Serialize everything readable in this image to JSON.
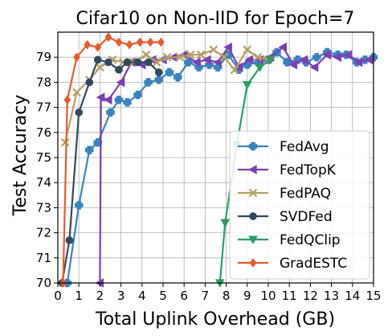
{
  "chart_data": {
    "type": "line",
    "title": "Cifar10 on Non-IID for Epoch=7",
    "xlabel": "Total Uplink Overhead (GB)",
    "ylabel": "Test Accuracy",
    "xlim": [
      0,
      15
    ],
    "ylim": [
      70,
      80
    ],
    "xticks": [
      0,
      1,
      2,
      3,
      4,
      5,
      6,
      7,
      8,
      9,
      10,
      11,
      12,
      13,
      14,
      15
    ],
    "yticks": [
      70,
      71,
      72,
      73,
      74,
      75,
      76,
      77,
      78,
      79
    ],
    "grid": true,
    "legend": "lower-right",
    "series": [
      {
        "name": "FedAvg",
        "color": "#3a83c0",
        "marker": "plus",
        "x": [
          0.45,
          1.0,
          1.5,
          1.9,
          2.5,
          2.9,
          3.3,
          3.8,
          4.3,
          4.8,
          5.3,
          5.7,
          6.2,
          6.7,
          7.2,
          7.6,
          8.1,
          8.6,
          9.0,
          9.5,
          10.0,
          10.4,
          10.9,
          11.4,
          11.8,
          12.3,
          12.8,
          13.3,
          13.7,
          14.2,
          14.6,
          15.0
        ],
        "y": [
          70.0,
          73.1,
          75.3,
          75.6,
          76.8,
          77.3,
          77.2,
          77.5,
          78.0,
          78.1,
          78.4,
          78.2,
          78.8,
          78.6,
          78.7,
          78.6,
          79.1,
          78.5,
          78.7,
          78.8,
          78.9,
          79.2,
          78.8,
          78.9,
          78.8,
          79.0,
          79.2,
          79.1,
          79.1,
          78.8,
          78.9,
          79.0
        ]
      },
      {
        "name": "FedTopK",
        "color": "#7b3fb3",
        "marker": "triangle-left",
        "x": [
          2.0,
          2.05,
          2.4,
          3.0,
          3.5,
          4.0,
          4.5,
          5.0,
          5.5,
          6.0,
          6.6,
          7.1,
          7.6,
          8.1,
          8.6,
          9.1,
          9.6,
          10.1,
          10.7,
          11.2,
          11.7,
          12.2,
          12.8,
          13.3,
          13.8,
          14.3,
          14.8
        ],
        "y": [
          70.0,
          77.4,
          77.3,
          78.0,
          78.8,
          78.7,
          78.9,
          78.9,
          79.0,
          79.1,
          78.8,
          78.9,
          78.8,
          79.4,
          78.6,
          78.9,
          78.9,
          79.0,
          79.4,
          78.7,
          78.9,
          78.6,
          79.1,
          79.0,
          79.1,
          78.8,
          78.9
        ]
      },
      {
        "name": "FedPAQ",
        "color": "#b5a064",
        "marker": "x",
        "x": [
          0.35,
          0.9,
          1.5,
          2.0,
          2.6,
          3.1,
          3.6,
          4.2,
          4.7,
          5.2,
          5.8,
          6.3,
          6.8,
          7.4,
          7.9,
          8.4,
          9.0,
          9.5,
          10.0
        ],
        "y": [
          75.6,
          77.6,
          78.1,
          78.6,
          78.9,
          78.8,
          78.8,
          79.1,
          78.8,
          79.0,
          79.0,
          79.1,
          79.1,
          79.3,
          79.0,
          78.5,
          79.3,
          79.0,
          78.9
        ]
      },
      {
        "name": "SVDFed",
        "color": "#324a60",
        "marker": "circle",
        "x": [
          0.2,
          0.55,
          1.0,
          1.5,
          1.9,
          2.4,
          2.9,
          3.3,
          3.8,
          4.3,
          4.8
        ],
        "y": [
          70.0,
          71.7,
          76.8,
          78.0,
          78.9,
          78.8,
          78.5,
          78.8,
          78.8,
          78.8,
          78.4
        ]
      },
      {
        "name": "FedQClip",
        "color": "#2d9d66",
        "marker": "triangle-down",
        "x": [
          7.7,
          7.95,
          8.5,
          9.0,
          9.6,
          10.1
        ],
        "y": [
          70.0,
          72.4,
          75.5,
          77.9,
          78.6,
          78.9
        ]
      },
      {
        "name": "GradESTC",
        "color": "#e85a2e",
        "marker": "diamond",
        "x": [
          0.25,
          0.45,
          0.9,
          1.4,
          1.9,
          2.4,
          2.9,
          3.4,
          3.9,
          4.4,
          4.9
        ],
        "y": [
          70.0,
          77.3,
          79.0,
          79.5,
          79.4,
          79.8,
          79.6,
          79.5,
          79.6,
          79.6,
          79.6
        ]
      }
    ]
  }
}
